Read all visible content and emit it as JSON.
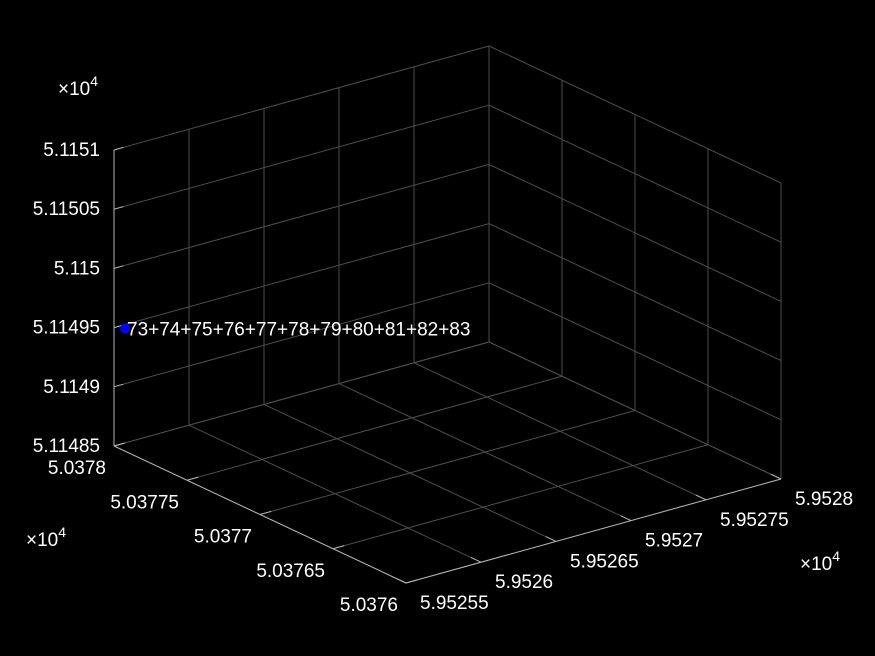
{
  "chart_data": {
    "type": "scatter",
    "title": "",
    "xlabel": "",
    "ylabel": "",
    "zlabel": "",
    "grid": true,
    "background": "#000000",
    "point_color": "#0000ff",
    "x_axis": {
      "exponent_label": "×10",
      "exponent_power": "4",
      "range": [
        5.95255,
        5.9528
      ],
      "ticks": [
        5.95255,
        5.9526,
        5.95265,
        5.9527,
        5.95275,
        5.9528
      ],
      "tick_labels": [
        "5.95255",
        "5.9526",
        "5.95265",
        "5.9527",
        "5.95275",
        "5.9528"
      ]
    },
    "y_axis": {
      "exponent_label": "×10",
      "exponent_power": "4",
      "range": [
        5.0376,
        5.0378
      ],
      "ticks": [
        5.0376,
        5.03765,
        5.0377,
        5.03775,
        5.0378
      ],
      "tick_labels": [
        "5.0376",
        "5.03765",
        "5.0377",
        "5.03775",
        "5.0378"
      ]
    },
    "z_axis": {
      "exponent_label": "×10",
      "exponent_power": "4",
      "range": [
        5.11485,
        5.1151
      ],
      "ticks": [
        5.11485,
        5.1149,
        5.11495,
        5.115,
        5.11505,
        5.1151
      ],
      "tick_labels": [
        "5.11485",
        "5.1149",
        "5.11495",
        "5.115",
        "5.11505",
        "5.1151"
      ]
    },
    "points": [
      {
        "x": 5.95255,
        "y": 5.0378,
        "z": 5.11495,
        "label": "73+74+75+76+77+78+79+80+81+82+83"
      }
    ]
  }
}
